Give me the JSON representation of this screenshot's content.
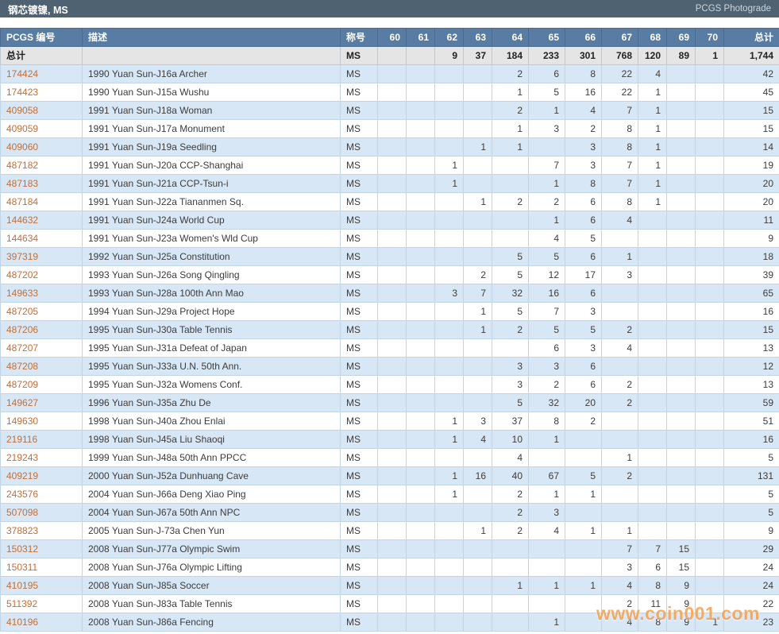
{
  "title_bar": {
    "title": "钢芯镀镍, MS",
    "photograde_link": "PCGS Photograde"
  },
  "watermark": "www.coin001.com",
  "colors": {
    "title_bar_bg": "#4e6272",
    "header_bg": "#597ca3",
    "row_shaded": "#d8e7f5",
    "totals_bg": "#e5e5e5",
    "link": "#c06f3a",
    "grid": "#c2d5e5",
    "watermark": "#f5a04d"
  },
  "table": {
    "headers": [
      "PCGS 编号",
      "描述",
      "称号",
      "60",
      "61",
      "62",
      "63",
      "64",
      "65",
      "66",
      "67",
      "68",
      "69",
      "70",
      "总计"
    ],
    "totals_row": {
      "pcgs": "总计",
      "desc": "",
      "designation": "MS",
      "grades": [
        "",
        "",
        "9",
        "37",
        "184",
        "233",
        "301",
        "768",
        "120",
        "89",
        "1"
      ],
      "total": "1,744"
    },
    "rows": [
      {
        "pcgs": "174424",
        "desc": "1990 Yuan Sun-J16a Archer",
        "designation": "MS",
        "grades": [
          "",
          "",
          "",
          "",
          "2",
          "6",
          "8",
          "22",
          "4",
          "",
          ""
        ],
        "total": "42"
      },
      {
        "pcgs": "174423",
        "desc": "1990 Yuan Sun-J15a Wushu",
        "designation": "MS",
        "grades": [
          "",
          "",
          "",
          "",
          "1",
          "5",
          "16",
          "22",
          "1",
          "",
          ""
        ],
        "total": "45"
      },
      {
        "pcgs": "409058",
        "desc": "1991 Yuan Sun-J18a Woman",
        "designation": "MS",
        "grades": [
          "",
          "",
          "",
          "",
          "2",
          "1",
          "4",
          "7",
          "1",
          "",
          ""
        ],
        "total": "15"
      },
      {
        "pcgs": "409059",
        "desc": "1991 Yuan Sun-J17a Monument",
        "designation": "MS",
        "grades": [
          "",
          "",
          "",
          "",
          "1",
          "3",
          "2",
          "8",
          "1",
          "",
          ""
        ],
        "total": "15"
      },
      {
        "pcgs": "409060",
        "desc": "1991 Yuan Sun-J19a Seedling",
        "designation": "MS",
        "grades": [
          "",
          "",
          "",
          "1",
          "1",
          "",
          "3",
          "8",
          "1",
          "",
          ""
        ],
        "total": "14"
      },
      {
        "pcgs": "487182",
        "desc": "1991 Yuan Sun-J20a CCP-Shanghai",
        "designation": "MS",
        "grades": [
          "",
          "",
          "1",
          "",
          "",
          "7",
          "3",
          "7",
          "1",
          "",
          ""
        ],
        "total": "19"
      },
      {
        "pcgs": "487183",
        "desc": "1991 Yuan Sun-J21a CCP-Tsun-i",
        "designation": "MS",
        "grades": [
          "",
          "",
          "1",
          "",
          "",
          "1",
          "8",
          "7",
          "1",
          "",
          ""
        ],
        "total": "20"
      },
      {
        "pcgs": "487184",
        "desc": "1991 Yuan Sun-J22a Tiananmen Sq.",
        "designation": "MS",
        "grades": [
          "",
          "",
          "",
          "1",
          "2",
          "2",
          "6",
          "8",
          "1",
          "",
          ""
        ],
        "total": "20"
      },
      {
        "pcgs": "144632",
        "desc": "1991 Yuan Sun-J24a World Cup",
        "designation": "MS",
        "grades": [
          "",
          "",
          "",
          "",
          "",
          "1",
          "6",
          "4",
          "",
          "",
          ""
        ],
        "total": "11"
      },
      {
        "pcgs": "144634",
        "desc": "1991 Yuan Sun-J23a Women's Wld Cup",
        "designation": "MS",
        "grades": [
          "",
          "",
          "",
          "",
          "",
          "4",
          "5",
          "",
          "",
          "",
          ""
        ],
        "total": "9"
      },
      {
        "pcgs": "397319",
        "desc": "1992 Yuan Sun-J25a Constitution",
        "designation": "MS",
        "grades": [
          "",
          "",
          "",
          "",
          "5",
          "5",
          "6",
          "1",
          "",
          "",
          ""
        ],
        "total": "18"
      },
      {
        "pcgs": "487202",
        "desc": "1993 Yuan Sun-J26a Song Qingling",
        "designation": "MS",
        "grades": [
          "",
          "",
          "",
          "2",
          "5",
          "12",
          "17",
          "3",
          "",
          "",
          ""
        ],
        "total": "39"
      },
      {
        "pcgs": "149633",
        "desc": "1993 Yuan Sun-J28a 100th Ann Mao",
        "designation": "MS",
        "grades": [
          "",
          "",
          "3",
          "7",
          "32",
          "16",
          "6",
          "",
          "",
          "",
          ""
        ],
        "total": "65"
      },
      {
        "pcgs": "487205",
        "desc": "1994 Yuan Sun-J29a Project Hope",
        "designation": "MS",
        "grades": [
          "",
          "",
          "",
          "1",
          "5",
          "7",
          "3",
          "",
          "",
          "",
          ""
        ],
        "total": "16"
      },
      {
        "pcgs": "487206",
        "desc": "1995 Yuan Sun-J30a Table Tennis",
        "designation": "MS",
        "grades": [
          "",
          "",
          "",
          "1",
          "2",
          "5",
          "5",
          "2",
          "",
          "",
          ""
        ],
        "total": "15"
      },
      {
        "pcgs": "487207",
        "desc": "1995 Yuan Sun-J31a Defeat of Japan",
        "designation": "MS",
        "grades": [
          "",
          "",
          "",
          "",
          "",
          "6",
          "3",
          "4",
          "",
          "",
          ""
        ],
        "total": "13"
      },
      {
        "pcgs": "487208",
        "desc": "1995 Yuan Sun-J33a U.N. 50th Ann.",
        "designation": "MS",
        "grades": [
          "",
          "",
          "",
          "",
          "3",
          "3",
          "6",
          "",
          "",
          "",
          ""
        ],
        "total": "12"
      },
      {
        "pcgs": "487209",
        "desc": "1995 Yuan Sun-J32a Womens Conf.",
        "designation": "MS",
        "grades": [
          "",
          "",
          "",
          "",
          "3",
          "2",
          "6",
          "2",
          "",
          "",
          ""
        ],
        "total": "13"
      },
      {
        "pcgs": "149627",
        "desc": "1996 Yuan Sun-J35a Zhu De",
        "designation": "MS",
        "grades": [
          "",
          "",
          "",
          "",
          "5",
          "32",
          "20",
          "2",
          "",
          "",
          ""
        ],
        "total": "59"
      },
      {
        "pcgs": "149630",
        "desc": "1998 Yuan Sun-J40a Zhou Enlai",
        "designation": "MS",
        "grades": [
          "",
          "",
          "1",
          "3",
          "37",
          "8",
          "2",
          "",
          "",
          "",
          ""
        ],
        "total": "51"
      },
      {
        "pcgs": "219116",
        "desc": "1998 Yuan Sun-J45a Liu Shaoqi",
        "designation": "MS",
        "grades": [
          "",
          "",
          "1",
          "4",
          "10",
          "1",
          "",
          "",
          "",
          "",
          ""
        ],
        "total": "16"
      },
      {
        "pcgs": "219243",
        "desc": "1999 Yuan Sun-J48a 50th Ann PPCC",
        "designation": "MS",
        "grades": [
          "",
          "",
          "",
          "",
          "4",
          "",
          "",
          "1",
          "",
          "",
          ""
        ],
        "total": "5"
      },
      {
        "pcgs": "409219",
        "desc": "2000 Yuan Sun-J52a Dunhuang Cave",
        "designation": "MS",
        "grades": [
          "",
          "",
          "1",
          "16",
          "40",
          "67",
          "5",
          "2",
          "",
          "",
          ""
        ],
        "total": "131"
      },
      {
        "pcgs": "243576",
        "desc": "2004 Yuan Sun-J66a Deng Xiao Ping",
        "designation": "MS",
        "grades": [
          "",
          "",
          "1",
          "",
          "2",
          "1",
          "1",
          "",
          "",
          "",
          ""
        ],
        "total": "5"
      },
      {
        "pcgs": "507098",
        "desc": "2004 Yuan Sun-J67a 50th Ann NPC",
        "designation": "MS",
        "grades": [
          "",
          "",
          "",
          "",
          "2",
          "3",
          "",
          "",
          "",
          "",
          ""
        ],
        "total": "5"
      },
      {
        "pcgs": "378823",
        "desc": "2005 Yuan Sun-J-73a Chen Yun",
        "designation": "MS",
        "grades": [
          "",
          "",
          "",
          "1",
          "2",
          "4",
          "1",
          "1",
          "",
          "",
          ""
        ],
        "total": "9"
      },
      {
        "pcgs": "150312",
        "desc": "2008 Yuan Sun-J77a Olympic Swim",
        "designation": "MS",
        "grades": [
          "",
          "",
          "",
          "",
          "",
          "",
          "",
          "7",
          "7",
          "15",
          ""
        ],
        "total": "29"
      },
      {
        "pcgs": "150311",
        "desc": "2008 Yuan Sun-J76a Olympic Lifting",
        "designation": "MS",
        "grades": [
          "",
          "",
          "",
          "",
          "",
          "",
          "",
          "3",
          "6",
          "15",
          ""
        ],
        "total": "24"
      },
      {
        "pcgs": "410195",
        "desc": "2008 Yuan Sun-J85a Soccer",
        "designation": "MS",
        "grades": [
          "",
          "",
          "",
          "",
          "1",
          "1",
          "1",
          "4",
          "8",
          "9",
          ""
        ],
        "total": "24"
      },
      {
        "pcgs": "511392",
        "desc": "2008 Yuan Sun-J83a Table Tennis",
        "designation": "MS",
        "grades": [
          "",
          "",
          "",
          "",
          "",
          "",
          "",
          "2",
          "11",
          "9",
          ""
        ],
        "total": "22"
      },
      {
        "pcgs": "410196",
        "desc": "2008 Yuan Sun-J86a Fencing",
        "designation": "MS",
        "grades": [
          "",
          "",
          "",
          "",
          "",
          "1",
          "",
          "4",
          "8",
          "9",
          "1"
        ],
        "total": "23"
      }
    ]
  }
}
